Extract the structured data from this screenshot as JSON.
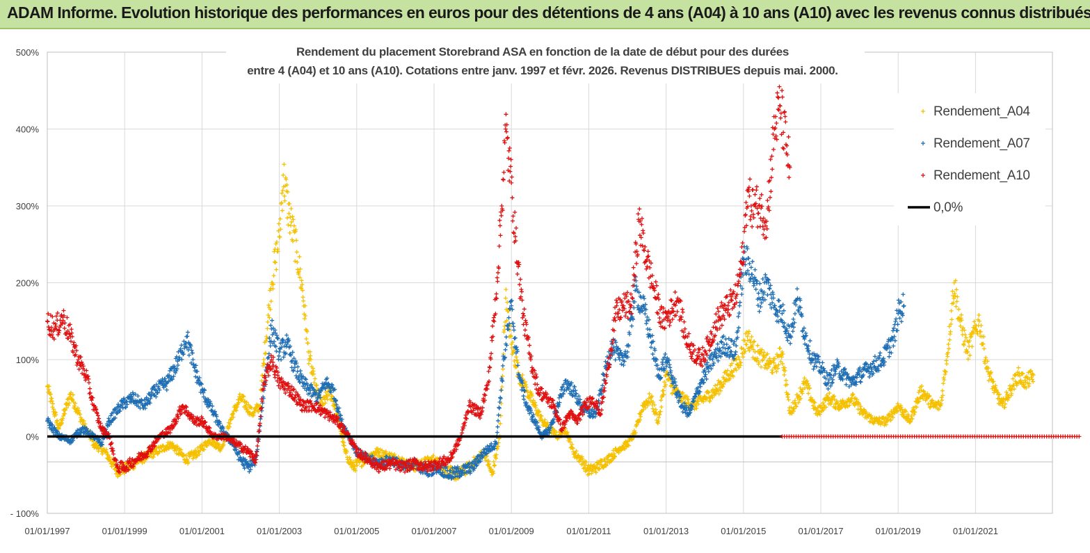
{
  "banner": {
    "title": "ADAM Informe. Evolution historique des performances en euros pour des détentions de 4 ans (A04) à 10 ans (A10) avec les revenus connus distribués"
  },
  "colors": {
    "banner_bg": "#c6e2a0",
    "a04": "#f5c000",
    "a07": "#1f6eb4",
    "a10": "#e01010",
    "zero": "#000000",
    "grid": "#d9d9d9"
  },
  "chart_data": {
    "type": "scatter",
    "title_line1": "Rendement du placement Storebrand ASA en fonction de la date de début pour des durées",
    "title_line2": "entre 4 (A04) et 10 ans (A10). Cotations entre janv. 1997 et févr. 2026. Revenus DISTRIBUES depuis mai. 2000.",
    "ylabel": "",
    "xlabel": "",
    "ylim": [
      -100,
      500
    ],
    "xlim": [
      1997.0,
      2024.0
    ],
    "y_ticks": [
      -100,
      0,
      100,
      200,
      300,
      400,
      500
    ],
    "y_tick_labels": [
      "- 100%",
      "0%",
      "100%",
      "200%",
      "300%",
      "400%",
      "500%"
    ],
    "x_ticks": [
      1997,
      1999,
      2001,
      2003,
      2005,
      2007,
      2009,
      2011,
      2013,
      2015,
      2017,
      2019,
      2021
    ],
    "x_tick_labels": [
      "01/01/1997",
      "01/01/1999",
      "01/01/2001",
      "01/01/2003",
      "01/01/2005",
      "01/01/2007",
      "01/01/2009",
      "01/01/2011",
      "01/01/2013",
      "01/01/2015",
      "01/01/2017",
      "01/01/2019",
      "01/01/2021"
    ],
    "legend_position": "top-right",
    "series": [
      {
        "name": "Rendement_A04",
        "key": "a04",
        "marker": "+",
        "points": [
          [
            1997.0,
            65
          ],
          [
            1997.3,
            10
          ],
          [
            1997.6,
            55
          ],
          [
            1997.9,
            20
          ],
          [
            1998.2,
            -10
          ],
          [
            1998.5,
            -20
          ],
          [
            1998.8,
            -45
          ],
          [
            1999.1,
            -40
          ],
          [
            1999.4,
            -30
          ],
          [
            1999.8,
            -20
          ],
          [
            2000.2,
            -10
          ],
          [
            2000.6,
            -30
          ],
          [
            2000.9,
            -20
          ],
          [
            2001.2,
            -5
          ],
          [
            2001.5,
            -15
          ],
          [
            2001.8,
            30
          ],
          [
            2002.0,
            50
          ],
          [
            2002.3,
            30
          ],
          [
            2002.5,
            40
          ],
          [
            2002.6,
            100
          ],
          [
            2002.8,
            200
          ],
          [
            2003.0,
            260
          ],
          [
            2003.1,
            340
          ],
          [
            2003.25,
            290
          ],
          [
            2003.45,
            240
          ],
          [
            2003.6,
            190
          ],
          [
            2003.75,
            110
          ],
          [
            2003.9,
            70
          ],
          [
            2004.1,
            40
          ],
          [
            2004.3,
            60
          ],
          [
            2004.5,
            30
          ],
          [
            2004.7,
            -20
          ],
          [
            2004.9,
            -40
          ],
          [
            2005.2,
            -30
          ],
          [
            2005.5,
            -20
          ],
          [
            2005.8,
            -25
          ],
          [
            2006.1,
            -30
          ],
          [
            2006.4,
            -40
          ],
          [
            2006.7,
            -35
          ],
          [
            2007.0,
            -30
          ],
          [
            2007.3,
            -45
          ],
          [
            2007.6,
            -50
          ],
          [
            2007.9,
            -40
          ],
          [
            2008.1,
            -30
          ],
          [
            2008.3,
            -20
          ],
          [
            2008.5,
            -50
          ],
          [
            2008.7,
            0
          ],
          [
            2008.85,
            180
          ],
          [
            2009.0,
            120
          ],
          [
            2009.2,
            80
          ],
          [
            2009.4,
            60
          ],
          [
            2009.6,
            40
          ],
          [
            2009.8,
            20
          ],
          [
            2010.0,
            10
          ],
          [
            2010.2,
            0
          ],
          [
            2010.4,
            10
          ],
          [
            2010.6,
            -20
          ],
          [
            2010.8,
            -30
          ],
          [
            2011.0,
            -45
          ],
          [
            2011.2,
            -40
          ],
          [
            2011.5,
            -30
          ],
          [
            2011.8,
            -15
          ],
          [
            2012.0,
            -10
          ],
          [
            2012.2,
            5
          ],
          [
            2012.4,
            40
          ],
          [
            2012.6,
            50
          ],
          [
            2012.8,
            20
          ],
          [
            2013.0,
            80
          ],
          [
            2013.2,
            60
          ],
          [
            2013.4,
            50
          ],
          [
            2013.7,
            40
          ],
          [
            2014.0,
            50
          ],
          [
            2014.3,
            60
          ],
          [
            2014.6,
            80
          ],
          [
            2014.9,
            100
          ],
          [
            2015.1,
            130
          ],
          [
            2015.3,
            110
          ],
          [
            2015.5,
            100
          ],
          [
            2015.8,
            90
          ],
          [
            2016.0,
            110
          ],
          [
            2016.2,
            30
          ],
          [
            2016.4,
            50
          ],
          [
            2016.6,
            70
          ],
          [
            2016.9,
            30
          ],
          [
            2017.2,
            50
          ],
          [
            2017.5,
            40
          ],
          [
            2017.8,
            50
          ],
          [
            2018.1,
            30
          ],
          [
            2018.4,
            20
          ],
          [
            2018.7,
            20
          ],
          [
            2019.0,
            40
          ],
          [
            2019.3,
            20
          ],
          [
            2019.6,
            60
          ],
          [
            2019.9,
            40
          ],
          [
            2020.1,
            40
          ],
          [
            2020.3,
            120
          ],
          [
            2020.45,
            200
          ],
          [
            2020.6,
            150
          ],
          [
            2020.8,
            110
          ],
          [
            2021.0,
            140
          ],
          [
            2021.1,
            150
          ],
          [
            2021.3,
            90
          ],
          [
            2021.5,
            60
          ],
          [
            2021.7,
            40
          ],
          [
            2021.9,
            60
          ],
          [
            2022.1,
            80
          ],
          [
            2022.3,
            70
          ],
          [
            2022.5,
            80
          ]
        ]
      },
      {
        "name": "Rendement_A07",
        "key": "a07",
        "marker": "+",
        "points": [
          [
            1997.0,
            20
          ],
          [
            1997.3,
            0
          ],
          [
            1997.6,
            -5
          ],
          [
            1997.9,
            10
          ],
          [
            1998.2,
            0
          ],
          [
            1998.4,
            -10
          ],
          [
            1998.6,
            20
          ],
          [
            1998.9,
            40
          ],
          [
            1999.2,
            50
          ],
          [
            1999.5,
            40
          ],
          [
            1999.8,
            60
          ],
          [
            2000.1,
            70
          ],
          [
            2000.4,
            100
          ],
          [
            2000.6,
            130
          ],
          [
            2000.8,
            90
          ],
          [
            2001.0,
            60
          ],
          [
            2001.2,
            40
          ],
          [
            2001.5,
            10
          ],
          [
            2001.8,
            -10
          ],
          [
            2002.0,
            -30
          ],
          [
            2002.2,
            -40
          ],
          [
            2002.4,
            -30
          ],
          [
            2002.6,
            60
          ],
          [
            2002.8,
            140
          ],
          [
            2003.0,
            110
          ],
          [
            2003.2,
            120
          ],
          [
            2003.4,
            90
          ],
          [
            2003.6,
            70
          ],
          [
            2003.8,
            60
          ],
          [
            2004.0,
            50
          ],
          [
            2004.2,
            70
          ],
          [
            2004.4,
            60
          ],
          [
            2004.6,
            20
          ],
          [
            2004.8,
            0
          ],
          [
            2005.0,
            -20
          ],
          [
            2005.3,
            -30
          ],
          [
            2005.6,
            -35
          ],
          [
            2005.9,
            -30
          ],
          [
            2006.2,
            -40
          ],
          [
            2006.5,
            -35
          ],
          [
            2006.8,
            -45
          ],
          [
            2007.1,
            -40
          ],
          [
            2007.4,
            -50
          ],
          [
            2007.7,
            -45
          ],
          [
            2008.0,
            -40
          ],
          [
            2008.3,
            -20
          ],
          [
            2008.6,
            -10
          ],
          [
            2008.8,
            100
          ],
          [
            2009.0,
            170
          ],
          [
            2009.2,
            80
          ],
          [
            2009.4,
            40
          ],
          [
            2009.6,
            20
          ],
          [
            2009.8,
            0
          ],
          [
            2010.0,
            10
          ],
          [
            2010.2,
            40
          ],
          [
            2010.4,
            70
          ],
          [
            2010.6,
            60
          ],
          [
            2010.8,
            40
          ],
          [
            2011.0,
            30
          ],
          [
            2011.2,
            30
          ],
          [
            2011.4,
            80
          ],
          [
            2011.6,
            120
          ],
          [
            2011.8,
            100
          ],
          [
            2012.0,
            110
          ],
          [
            2012.2,
            190
          ],
          [
            2012.4,
            170
          ],
          [
            2012.6,
            130
          ],
          [
            2012.8,
            80
          ],
          [
            2013.0,
            100
          ],
          [
            2013.2,
            70
          ],
          [
            2013.4,
            40
          ],
          [
            2013.6,
            30
          ],
          [
            2013.9,
            70
          ],
          [
            2014.2,
            100
          ],
          [
            2014.5,
            120
          ],
          [
            2014.8,
            110
          ],
          [
            2015.0,
            230
          ],
          [
            2015.2,
            220
          ],
          [
            2015.4,
            180
          ],
          [
            2015.6,
            200
          ],
          [
            2015.8,
            170
          ],
          [
            2016.0,
            160
          ],
          [
            2016.2,
            130
          ],
          [
            2016.4,
            180
          ],
          [
            2016.6,
            130
          ],
          [
            2016.8,
            100
          ],
          [
            2017.0,
            90
          ],
          [
            2017.2,
            70
          ],
          [
            2017.4,
            90
          ],
          [
            2017.6,
            80
          ],
          [
            2017.8,
            70
          ],
          [
            2018.0,
            80
          ],
          [
            2018.3,
            90
          ],
          [
            2018.6,
            100
          ],
          [
            2018.9,
            130
          ],
          [
            2019.0,
            160
          ],
          [
            2019.15,
            170
          ]
        ]
      },
      {
        "name": "Rendement_A10",
        "key": "a10",
        "marker": "+",
        "points": [
          [
            1997.0,
            150
          ],
          [
            1997.2,
            140
          ],
          [
            1997.4,
            155
          ],
          [
            1997.6,
            130
          ],
          [
            1997.8,
            100
          ],
          [
            1998.0,
            80
          ],
          [
            1998.2,
            40
          ],
          [
            1998.4,
            10
          ],
          [
            1998.6,
            0
          ],
          [
            1998.8,
            -40
          ],
          [
            1999.0,
            -40
          ],
          [
            1999.3,
            -30
          ],
          [
            1999.6,
            -20
          ],
          [
            1999.9,
            0
          ],
          [
            2000.2,
            10
          ],
          [
            2000.5,
            40
          ],
          [
            2000.8,
            20
          ],
          [
            2001.0,
            20
          ],
          [
            2001.3,
            0
          ],
          [
            2001.6,
            0
          ],
          [
            2001.9,
            -10
          ],
          [
            2002.2,
            -20
          ],
          [
            2002.4,
            -30
          ],
          [
            2002.6,
            70
          ],
          [
            2002.8,
            100
          ],
          [
            2003.0,
            70
          ],
          [
            2003.3,
            60
          ],
          [
            2003.6,
            40
          ],
          [
            2003.9,
            40
          ],
          [
            2004.2,
            30
          ],
          [
            2004.5,
            20
          ],
          [
            2004.8,
            0
          ],
          [
            2005.0,
            -20
          ],
          [
            2005.3,
            -30
          ],
          [
            2005.6,
            -40
          ],
          [
            2005.9,
            -35
          ],
          [
            2006.2,
            -40
          ],
          [
            2006.5,
            -35
          ],
          [
            2006.8,
            -40
          ],
          [
            2007.1,
            -35
          ],
          [
            2007.4,
            -30
          ],
          [
            2007.7,
            0
          ],
          [
            2007.9,
            40
          ],
          [
            2008.2,
            30
          ],
          [
            2008.4,
            70
          ],
          [
            2008.6,
            180
          ],
          [
            2008.75,
            300
          ],
          [
            2008.85,
            400
          ],
          [
            2009.0,
            330
          ],
          [
            2009.1,
            260
          ],
          [
            2009.3,
            160
          ],
          [
            2009.5,
            100
          ],
          [
            2009.7,
            60
          ],
          [
            2009.9,
            50
          ],
          [
            2010.1,
            40
          ],
          [
            2010.3,
            10
          ],
          [
            2010.5,
            30
          ],
          [
            2010.7,
            20
          ],
          [
            2010.9,
            40
          ],
          [
            2011.1,
            50
          ],
          [
            2011.3,
            30
          ],
          [
            2011.5,
            90
          ],
          [
            2011.7,
            160
          ],
          [
            2011.9,
            170
          ],
          [
            2012.1,
            170
          ],
          [
            2012.3,
            280
          ],
          [
            2012.5,
            230
          ],
          [
            2012.7,
            190
          ],
          [
            2012.9,
            150
          ],
          [
            2013.1,
            160
          ],
          [
            2013.3,
            180
          ],
          [
            2013.5,
            130
          ],
          [
            2013.7,
            110
          ],
          [
            2013.9,
            100
          ],
          [
            2014.1,
            120
          ],
          [
            2014.3,
            150
          ],
          [
            2014.6,
            170
          ],
          [
            2014.8,
            180
          ],
          [
            2015.0,
            240
          ],
          [
            2015.1,
            320
          ],
          [
            2015.2,
            300
          ],
          [
            2015.4,
            300
          ],
          [
            2015.6,
            280
          ],
          [
            2015.8,
            400
          ],
          [
            2015.95,
            430
          ],
          [
            2016.1,
            380
          ],
          [
            2016.2,
            350
          ]
        ]
      },
      {
        "name": "0,0%",
        "key": "zero",
        "marker": "line",
        "points": [
          [
            1997.0,
            0
          ],
          [
            2016.0,
            0
          ]
        ]
      }
    ],
    "flat_zero_red_markers": {
      "x_start": 2016.0,
      "x_end": 2023.7,
      "y": 0
    }
  }
}
